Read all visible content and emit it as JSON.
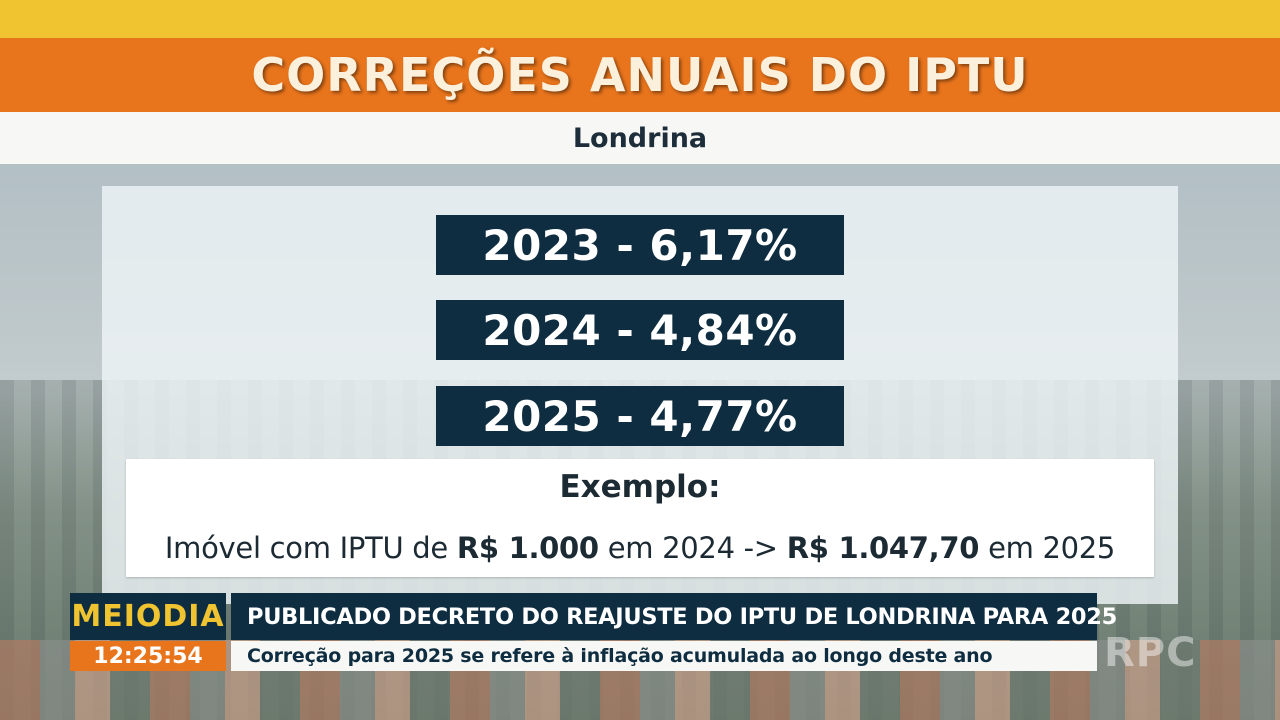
{
  "header": {
    "title": "CORREÇÕES ANUAIS DO IPTU",
    "subtitle": "Londrina"
  },
  "rates": [
    {
      "label": "2023 - 6,17%"
    },
    {
      "label": "2024 - 4,84%"
    },
    {
      "label": "2025 - 4,77%"
    }
  ],
  "example": {
    "title": "Exemplo:",
    "text_1": "Imóvel com IPTU de ",
    "value_1": "R$ 1.000",
    "text_2": " em 2024 -> ",
    "value_2": "R$ 1.047,70",
    "text_3": " em 2025"
  },
  "lower_third": {
    "program": "MEIODIA",
    "clock": "12:25:54",
    "headline": "PUBLICADO DECRETO DO REAJUSTE DO IPTU DE LONDRINA PARA 2025",
    "subheadline": "Correção para 2025 se refere à inflação acumulada ao longo deste ano"
  },
  "watermark": "RPC",
  "colors": {
    "yellow": "#f0c330",
    "orange": "#e8741c",
    "navy": "#0f2d40"
  }
}
